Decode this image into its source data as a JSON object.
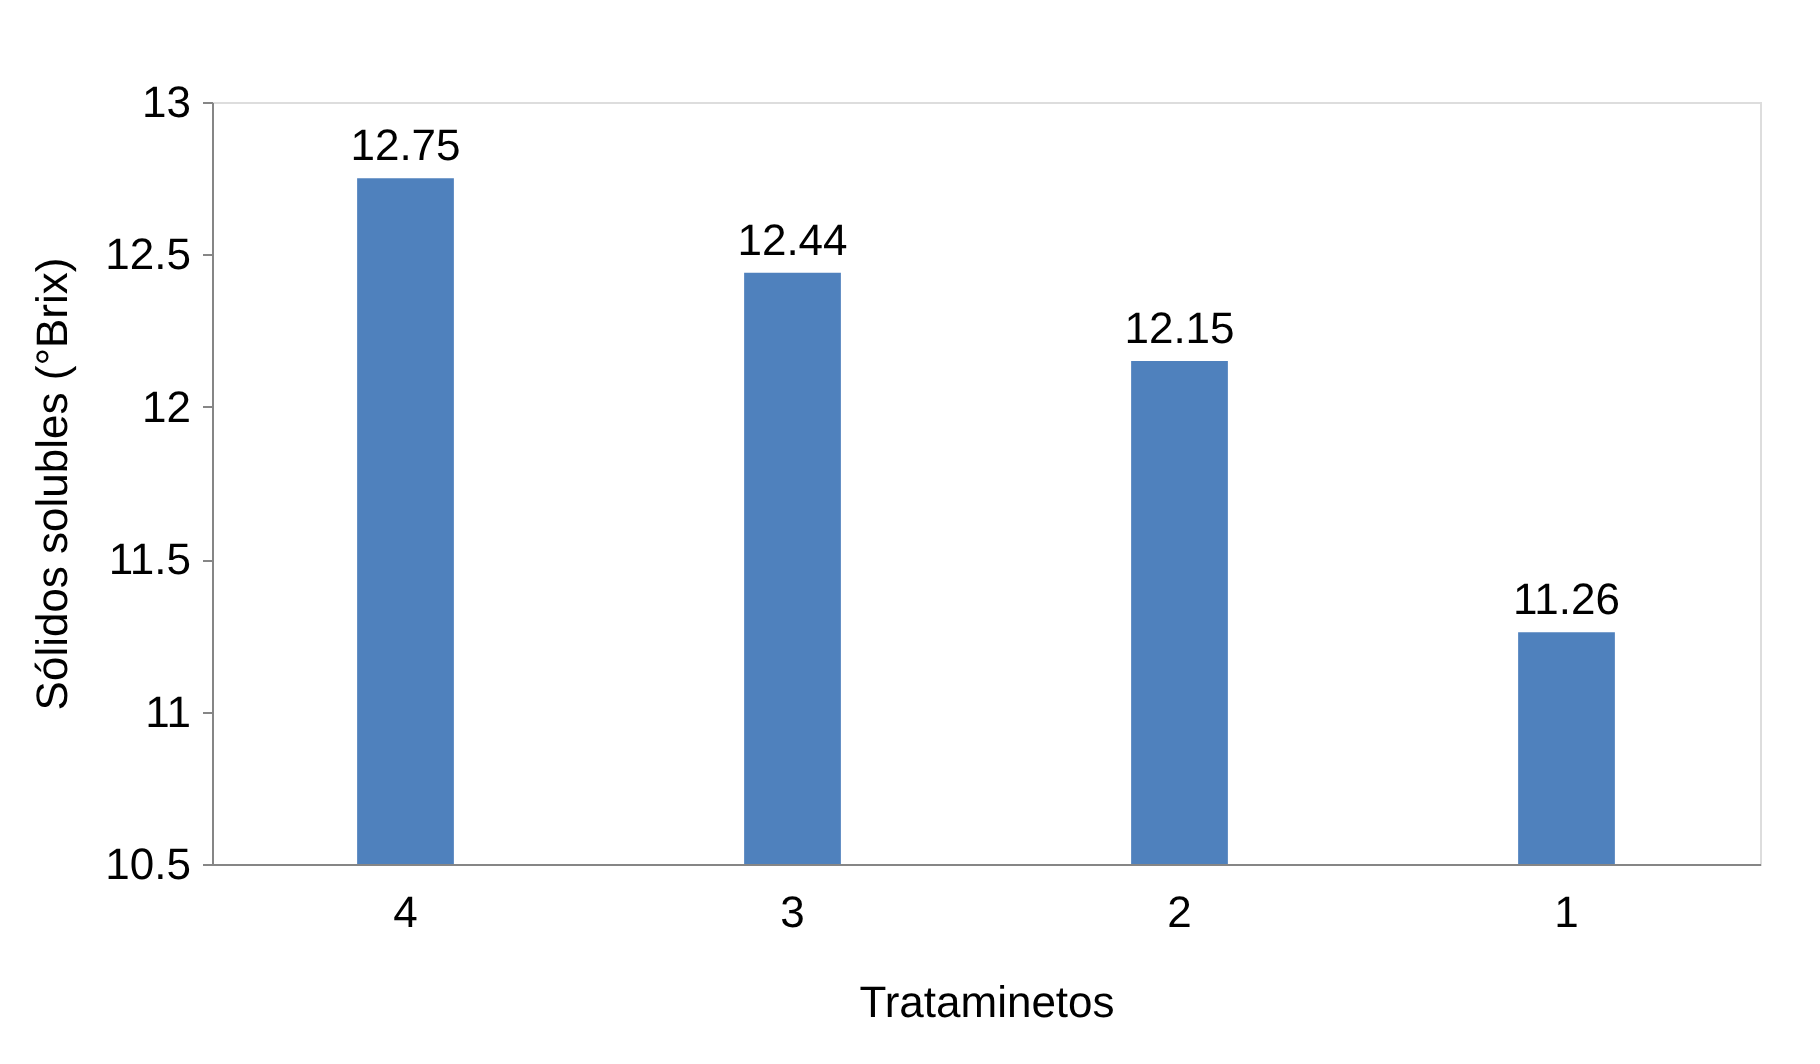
{
  "chart_data": {
    "type": "bar",
    "xlabel": "Trataminetos",
    "ylabel": "Sólidos solubles (°Brix)",
    "categories": [
      "4",
      "3",
      "2",
      "1"
    ],
    "values": [
      12.75,
      12.44,
      12.15,
      11.26
    ],
    "color": "#4f81bd",
    "ylim": [
      10.5,
      13
    ],
    "yticks": [
      10.5,
      {
        "value": 11,
        "label": "11"
      },
      11.5,
      {
        "value": 12,
        "label": "12"
      },
      12.5,
      {
        "value": 13,
        "label": "13"
      }
    ],
    "data_labels": true,
    "grid": false
  }
}
